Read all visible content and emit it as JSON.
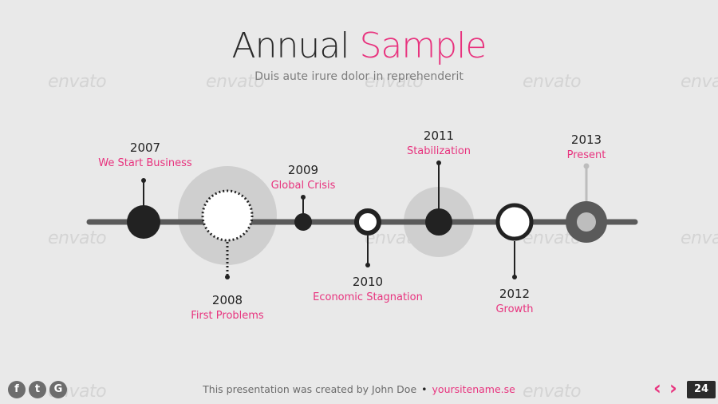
{
  "title": {
    "part1": "Annual",
    "part2": "Sample"
  },
  "subtitle": "Duis aute irure dolor in reprehenderit",
  "watermark": "envato",
  "milestones": [
    {
      "year": "2007",
      "event": "We Start Business"
    },
    {
      "year": "2008",
      "event": "First Problems"
    },
    {
      "year": "2009",
      "event": "Global Crisis"
    },
    {
      "year": "2010",
      "event": "Economic Stagnation"
    },
    {
      "year": "2011",
      "event": "Stabilization"
    },
    {
      "year": "2012",
      "event": "Growth"
    },
    {
      "year": "2013",
      "event": "Present"
    }
  ],
  "footer": {
    "credit": "This presentation was created by John Doe",
    "link": "yoursitename.se"
  },
  "social": {
    "facebook": "f",
    "twitter": "t",
    "google": "G"
  },
  "nav": {
    "prev": "‹",
    "next": "›"
  },
  "page_number": "24",
  "colors": {
    "accent": "#e8337e",
    "dark": "#222222",
    "line": "#5a5a5a",
    "halo": "#cfcfcf"
  }
}
